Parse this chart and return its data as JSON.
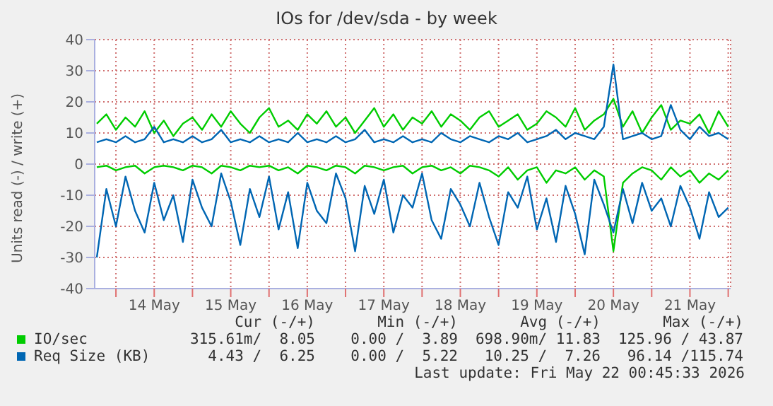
{
  "chart_data": {
    "type": "line",
    "title": "IOs for /dev/sda - by week",
    "ylabel": "Units read (-) / write (+)",
    "x": [
      "2026-05-13T18:00",
      "2026-05-13T21:00",
      "2026-05-14T00:00",
      "2026-05-14T03:00",
      "2026-05-14T06:00",
      "2026-05-14T09:00",
      "2026-05-14T12:00",
      "2026-05-14T15:00",
      "2026-05-14T18:00",
      "2026-05-14T21:00",
      "2026-05-15T00:00",
      "2026-05-15T03:00",
      "2026-05-15T06:00",
      "2026-05-15T09:00",
      "2026-05-15T12:00",
      "2026-05-15T15:00",
      "2026-05-15T18:00",
      "2026-05-15T21:00",
      "2026-05-16T00:00",
      "2026-05-16T03:00",
      "2026-05-16T06:00",
      "2026-05-16T09:00",
      "2026-05-16T12:00",
      "2026-05-16T15:00",
      "2026-05-16T18:00",
      "2026-05-16T21:00",
      "2026-05-17T00:00",
      "2026-05-17T03:00",
      "2026-05-17T06:00",
      "2026-05-17T09:00",
      "2026-05-17T12:00",
      "2026-05-17T15:00",
      "2026-05-17T18:00",
      "2026-05-17T21:00",
      "2026-05-18T00:00",
      "2026-05-18T03:00",
      "2026-05-18T06:00",
      "2026-05-18T09:00",
      "2026-05-18T12:00",
      "2026-05-18T15:00",
      "2026-05-18T18:00",
      "2026-05-18T21:00",
      "2026-05-19T00:00",
      "2026-05-19T03:00",
      "2026-05-19T06:00",
      "2026-05-19T09:00",
      "2026-05-19T12:00",
      "2026-05-19T15:00",
      "2026-05-19T18:00",
      "2026-05-19T21:00",
      "2026-05-20T00:00",
      "2026-05-20T03:00",
      "2026-05-20T06:00",
      "2026-05-20T09:00",
      "2026-05-20T12:00",
      "2026-05-20T15:00",
      "2026-05-20T18:00",
      "2026-05-20T21:00",
      "2026-05-21T00:00",
      "2026-05-21T03:00",
      "2026-05-21T06:00",
      "2026-05-21T09:00",
      "2026-05-21T12:00",
      "2026-05-21T15:00",
      "2026-05-21T18:00",
      "2026-05-21T21:00",
      "2026-05-22T00:00"
    ],
    "series": [
      {
        "name": "IO/sec",
        "color": "#00cc00",
        "values": [
          13,
          16,
          11,
          15,
          12,
          17,
          10,
          14,
          9,
          13,
          15,
          11,
          16,
          12,
          17,
          13,
          10,
          15,
          18,
          12,
          14,
          11,
          16,
          13,
          17,
          12,
          15,
          10,
          14,
          18,
          12,
          16,
          11,
          15,
          13,
          17,
          12,
          16,
          14,
          11,
          15,
          17,
          12,
          14,
          16,
          11,
          13,
          17,
          15,
          12,
          18,
          11,
          14,
          16,
          21,
          12,
          17,
          10,
          15,
          19,
          11,
          14,
          13,
          16,
          10,
          17,
          12
        ]
      },
      {
        "color": "#00cc00",
        "values": [
          -1,
          -0.5,
          -2,
          -1,
          -0.5,
          -3,
          -1,
          -0.5,
          -1,
          -2,
          -0.5,
          -1,
          -3,
          -0.5,
          -1,
          -2,
          -0.5,
          -1,
          -0.5,
          -2,
          -1,
          -3,
          -0.5,
          -1,
          -2,
          -0.5,
          -1,
          -3,
          -0.5,
          -1,
          -2,
          -1,
          -0.5,
          -3,
          -1,
          -0.5,
          -2,
          -1,
          -3,
          -0.5,
          -1,
          -2,
          -4,
          -1,
          -5,
          -2,
          -1,
          -6,
          -2,
          -3,
          -1,
          -5,
          -2,
          -4,
          -28,
          -6,
          -3,
          -1,
          -2,
          -5,
          -1,
          -4,
          -2,
          -6,
          -3,
          -5,
          -2
        ]
      },
      {
        "name": "Req Size (KB)",
        "color": "#0066b3",
        "values": [
          7,
          8,
          7,
          9,
          7,
          8,
          12,
          7,
          8,
          7,
          9,
          7,
          8,
          11,
          7,
          8,
          7,
          9,
          7,
          8,
          7,
          10,
          7,
          8,
          7,
          9,
          7,
          8,
          11,
          7,
          8,
          7,
          9,
          7,
          8,
          7,
          10,
          8,
          7,
          9,
          8,
          7,
          9,
          8,
          10,
          7,
          8,
          9,
          11,
          8,
          10,
          9,
          8,
          12,
          32,
          8,
          9,
          10,
          8,
          9,
          19,
          11,
          8,
          12,
          9,
          10,
          8
        ]
      },
      {
        "color": "#0066b3",
        "values": [
          -30,
          -8,
          -20,
          -4,
          -15,
          -22,
          -6,
          -18,
          -10,
          -25,
          -5,
          -14,
          -20,
          -3,
          -12,
          -26,
          -8,
          -17,
          -4,
          -21,
          -9,
          -27,
          -6,
          -15,
          -19,
          -3,
          -11,
          -28,
          -7,
          -16,
          -5,
          -22,
          -10,
          -14,
          -3,
          -18,
          -24,
          -8,
          -13,
          -20,
          -6,
          -17,
          -26,
          -9,
          -14,
          -4,
          -21,
          -11,
          -25,
          -7,
          -16,
          -29,
          -5,
          -13,
          -22,
          -8,
          -19,
          -6,
          -15,
          -11,
          -20,
          -7,
          -14,
          -24,
          -9,
          -17,
          -14
        ]
      }
    ],
    "xlim": [
      "2026-05-13T17:20",
      "2026-05-22T00:45"
    ],
    "xticks": [
      {
        "value": "2026-05-14T00:00",
        "label": null
      },
      {
        "value": "2026-05-14T12:00",
        "label": "14 May"
      },
      {
        "value": "2026-05-15T00:00",
        "label": null
      },
      {
        "value": "2026-05-15T12:00",
        "label": "15 May"
      },
      {
        "value": "2026-05-16T00:00",
        "label": null
      },
      {
        "value": "2026-05-16T12:00",
        "label": "16 May"
      },
      {
        "value": "2026-05-17T00:00",
        "label": null
      },
      {
        "value": "2026-05-17T12:00",
        "label": "17 May"
      },
      {
        "value": "2026-05-18T00:00",
        "label": null
      },
      {
        "value": "2026-05-18T12:00",
        "label": "18 May"
      },
      {
        "value": "2026-05-19T00:00",
        "label": null
      },
      {
        "value": "2026-05-19T12:00",
        "label": "19 May"
      },
      {
        "value": "2026-05-20T00:00",
        "label": null
      },
      {
        "value": "2026-05-20T12:00",
        "label": "20 May"
      },
      {
        "value": "2026-05-21T00:00",
        "label": null
      },
      {
        "value": "2026-05-21T12:00",
        "label": "21 May"
      },
      {
        "value": "2026-05-22T00:00",
        "label": null
      }
    ],
    "ylim": [
      -40,
      40
    ],
    "yticks": [
      -40,
      -30,
      -20,
      -10,
      0,
      10,
      20,
      30,
      40
    ],
    "grid": true,
    "legend": "bottom",
    "marker": "none",
    "line_style": "solid",
    "annotations": [
      "Cur (-/+)",
      "Min (-/+)",
      "Avg (-/+)",
      "Max (-/+)",
      "315.61m/  8.05",
      "0.00 /  3.89",
      "698.90m/ 11.83",
      "125.96 / 43.87",
      "4.43 /  6.25",
      "0.00 /  5.22",
      "10.25 /  7.26",
      "96.14 /115.74",
      "Last update: Fri May 22 00:45:33 2026"
    ]
  }
}
